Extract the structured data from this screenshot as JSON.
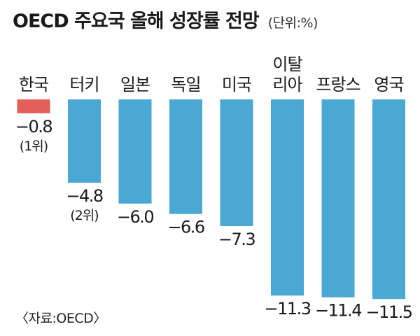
{
  "title": "OECD 주요국 올해 성장률 전망",
  "unit": "(단위:%)",
  "source": "〈자료:OECD〉",
  "colors": {
    "highlight": "#e35f5a",
    "bar": "#4ba7d3"
  },
  "chart_data": {
    "type": "bar",
    "categories": [
      "한국",
      "터키",
      "일본",
      "독일",
      "미국",
      "이탈리아",
      "프랑스",
      "영국"
    ],
    "category_lines": [
      [
        "한국"
      ],
      [
        "터키"
      ],
      [
        "일본"
      ],
      [
        "독일"
      ],
      [
        "미국"
      ],
      [
        "이탈",
        "리아"
      ],
      [
        "프랑스"
      ],
      [
        "영국"
      ]
    ],
    "values": [
      -0.8,
      -4.8,
      -6.0,
      -6.6,
      -7.3,
      -11.3,
      -11.4,
      -11.5
    ],
    "value_labels": [
      "−0.8",
      "−4.8",
      "−6.0",
      "−6.6",
      "−7.3",
      "−11.3",
      "−11.4",
      "−11.5"
    ],
    "rank_labels": [
      "(1위)",
      "(2위)",
      "",
      "",
      "",
      "",
      "",
      ""
    ],
    "highlight_index": 0,
    "ylim": [
      -11.5,
      0
    ],
    "title": "OECD 주요국 올해 성장률 전망",
    "xlabel": "",
    "ylabel": "",
    "grid": false,
    "legend": "none"
  }
}
